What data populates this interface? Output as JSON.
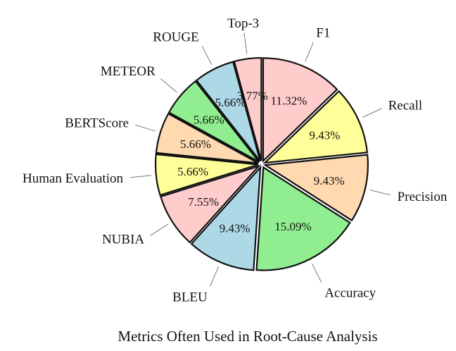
{
  "chart_data": {
    "type": "pie",
    "title": "Metrics Often Used in Root-Cause Analysis",
    "start": "top",
    "direction": "clockwise",
    "exploded": true,
    "slices": [
      {
        "label": "F1",
        "value": 11.32,
        "pct_label": "11.32%",
        "color": "#ffcccc"
      },
      {
        "label": "Recall",
        "value": 9.43,
        "pct_label": "9.43%",
        "color": "#ffff99"
      },
      {
        "label": "Precision",
        "value": 9.43,
        "pct_label": "9.43%",
        "color": "#ffdab0"
      },
      {
        "label": "Accuracy",
        "value": 15.09,
        "pct_label": "15.09%",
        "color": "#90ee90"
      },
      {
        "label": "BLEU",
        "value": 9.43,
        "pct_label": "9.43%",
        "color": "#add8e6"
      },
      {
        "label": "NUBIA",
        "value": 7.55,
        "pct_label": "7.55%",
        "color": "#ffcccc"
      },
      {
        "label": "Human Evaluation",
        "value": 5.66,
        "pct_label": "5.66%",
        "color": "#ffff99"
      },
      {
        "label": "BERTScore",
        "value": 5.66,
        "pct_label": "5.66%",
        "color": "#ffdab0"
      },
      {
        "label": "METEOR",
        "value": 5.66,
        "pct_label": "5.66%",
        "color": "#90ee90"
      },
      {
        "label": "ROUGE",
        "value": 5.66,
        "pct_label": "5.66%",
        "color": "#add8e6"
      },
      {
        "label": "Top-3",
        "value": 3.77,
        "pct_label": "3.77%",
        "color": "#ffcccc"
      }
    ]
  }
}
